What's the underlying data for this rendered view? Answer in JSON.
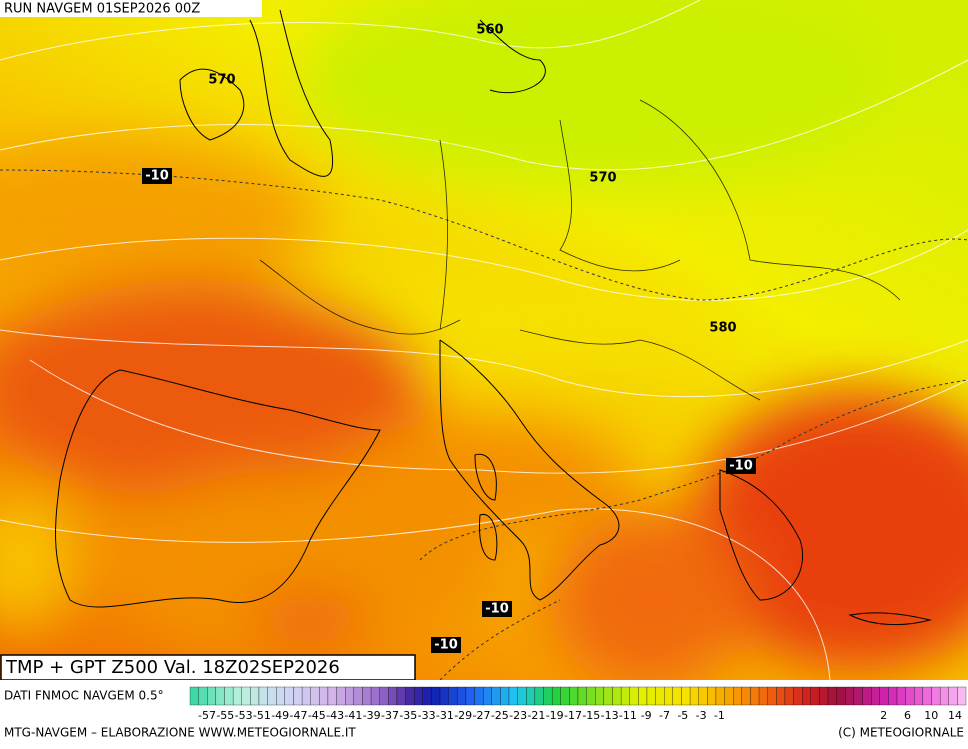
{
  "header": {
    "run": "RUN NAVGEM 01SEP2026 00Z"
  },
  "map": {
    "title": "TMP + GPT Z500 Val. 18Z02SEP2026",
    "contour_labels": [
      "560",
      "570",
      "570",
      "580"
    ],
    "temperature_labels": [
      "-10",
      "-10",
      "-10",
      "-10"
    ]
  },
  "footer": {
    "source": "DATI FNMOC NAVGEM 0.5°",
    "colorbar_labels": [
      "-57",
      "-55",
      "-53",
      "-51",
      "-49",
      "-47",
      "-45",
      "-43",
      "-41",
      "-39",
      "-37",
      "-35",
      "-33",
      "-31",
      "-29",
      "-27",
      "-25",
      "-23",
      "-21",
      "-19",
      "-17",
      "-15",
      "-13",
      "-11",
      "-9",
      "-7",
      "-5",
      "-3",
      "-1",
      "2",
      "6",
      "10",
      "14"
    ],
    "credit": "MTG-NAVGEM – ELABORAZIONE WWW.METEOGIORNALE.IT",
    "copyright": "(C) METEOGIORNALE"
  }
}
